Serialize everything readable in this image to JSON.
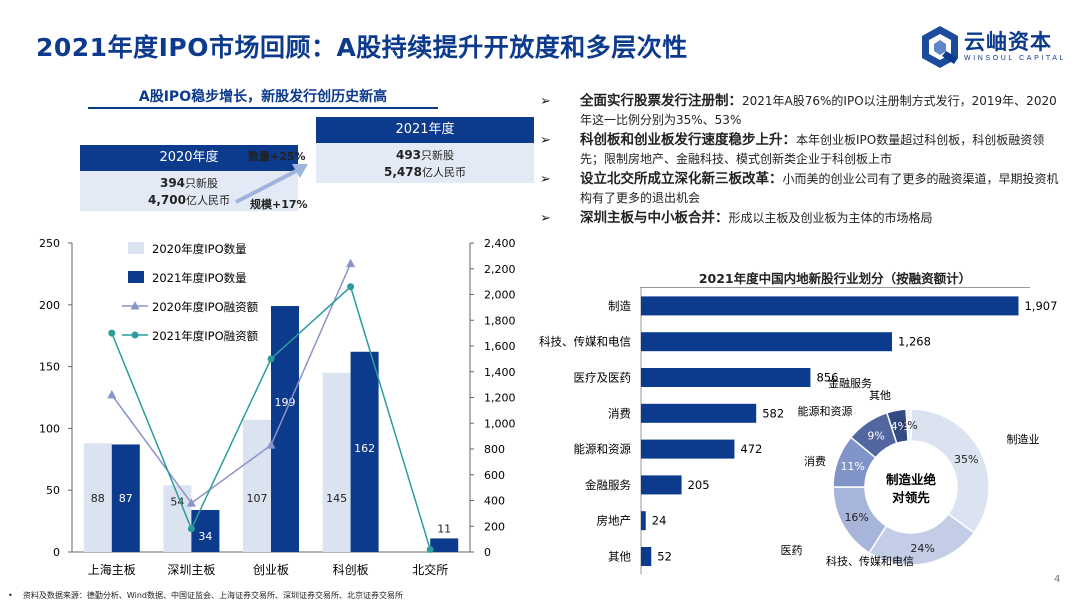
{
  "header": {
    "title": "2021年度IPO市场回顾：A股持续提升开放度和多层次性",
    "logo_name": "云岫资本",
    "logo_sub": "WINSOUL CAPITAL"
  },
  "summary": {
    "title": "A股IPO稳步增长，新股发行创历史新高",
    "y2020": {
      "label": "2020年度",
      "count": "394",
      "count_unit": "只新股",
      "amount": "4,700",
      "amount_unit": "亿人民币"
    },
    "y2021": {
      "label": "2021年度",
      "count": "493",
      "count_unit": "只新股",
      "amount": "5,478",
      "amount_unit": "亿人民币"
    },
    "growth_count": "数量+25%",
    "growth_scale": "规模+17%"
  },
  "bullets": [
    {
      "head": "全面实行股票发行注册制：",
      "body": "2021年A股76%的IPO以注册制方式发行，2019年、2020年这一比例分别为35%、53%"
    },
    {
      "head": "科创板和创业板发行速度稳步上升：",
      "body": "本年创业板IPO数量超过科创板，科创板融资领先；限制房地产、金融科技、模式创新类企业于科创板上市"
    },
    {
      "head": "设立北交所成立深化新三板改革：",
      "body": "小而美的创业公司有了更多的融资渠道，早期投资机构有了更多的退出机会"
    },
    {
      "head": "深圳主板与中小板合并：",
      "body": "形成以主板及创业板为主体的市场格局"
    }
  ],
  "colors": {
    "navy": "#0c3a8c",
    "light": "#dbe3f1",
    "teal": "#2a9d9a",
    "lavender": "#8a93cb"
  },
  "chart_data": [
    {
      "type": "bar",
      "categories": [
        "上海主板",
        "深圳主板",
        "创业板",
        "科创板",
        "北交所"
      ],
      "series": [
        {
          "name": "2020年度IPO数量",
          "kind": "bar",
          "axis": "left",
          "values": [
            88,
            54,
            107,
            145,
            0
          ],
          "labels": [
            "88",
            "54",
            "107",
            "145",
            ""
          ]
        },
        {
          "name": "2021年度IPO数量",
          "kind": "bar",
          "axis": "left",
          "values": [
            87,
            34,
            199,
            162,
            11
          ],
          "labels": [
            "87",
            "34",
            "199",
            "162",
            "11"
          ]
        },
        {
          "name": "2020年度IPO融资额",
          "kind": "line",
          "axis": "right",
          "values": [
            1220,
            380,
            830,
            2240,
            null
          ]
        },
        {
          "name": "2021年度IPO融资额",
          "kind": "line",
          "axis": "right",
          "values": [
            1700,
            180,
            1500,
            2060,
            20
          ]
        }
      ],
      "ylim": [
        0,
        250
      ],
      "yticks": [
        "0",
        "50",
        "100",
        "150",
        "200",
        "250"
      ],
      "y2lim": [
        0,
        2400
      ],
      "y2ticks": [
        "0",
        "200",
        "400",
        "600",
        "800",
        "1,000",
        "1,200",
        "1,400",
        "1,600",
        "1,800",
        "2,000",
        "2,200",
        "2,400"
      ],
      "legend": "top-left"
    },
    {
      "type": "bar",
      "orientation": "horizontal",
      "title": "2021年度中国内地新股行业划分（按融资额计）",
      "categories": [
        "制造",
        "科技、传媒和电信",
        "医疗及医药",
        "消费",
        "能源和资源",
        "金融服务",
        "房地产",
        "其他"
      ],
      "values": [
        1907,
        1268,
        856,
        582,
        472,
        205,
        24,
        52
      ],
      "value_labels": [
        "1,907",
        "1,268",
        "856",
        "582",
        "472",
        "205",
        "24",
        "52"
      ],
      "xlim": [
        0,
        1950
      ]
    },
    {
      "type": "pie",
      "donut": true,
      "center_text": [
        "制造业绝",
        "对领先"
      ],
      "slices": [
        {
          "name": "制造业",
          "value": 35,
          "label": "35%",
          "color": "#dbe3f1"
        },
        {
          "name": "科技、传媒和电信",
          "value": 24,
          "label": "24%",
          "color": "#c3cde6"
        },
        {
          "name": "医疗及医药",
          "value": 16,
          "label": "16%",
          "color": "#a7b5da"
        },
        {
          "name": "消费",
          "value": 11,
          "label": "11%",
          "color": "#8194c7"
        },
        {
          "name": "能源和资源",
          "value": 9,
          "label": "9%",
          "color": "#52679f"
        },
        {
          "name": "金融服务",
          "value": 4,
          "label": "4%",
          "color": "#344a82"
        },
        {
          "name": "其他",
          "value": 1,
          "label": "1%",
          "color": "#eef2f9"
        }
      ]
    }
  ],
  "footnote": "资料及数据来源：德勤分析、Wind数据、中国证监会、上海证券交易所、深圳证券交易所、北京证券交易所",
  "page_number": "4"
}
